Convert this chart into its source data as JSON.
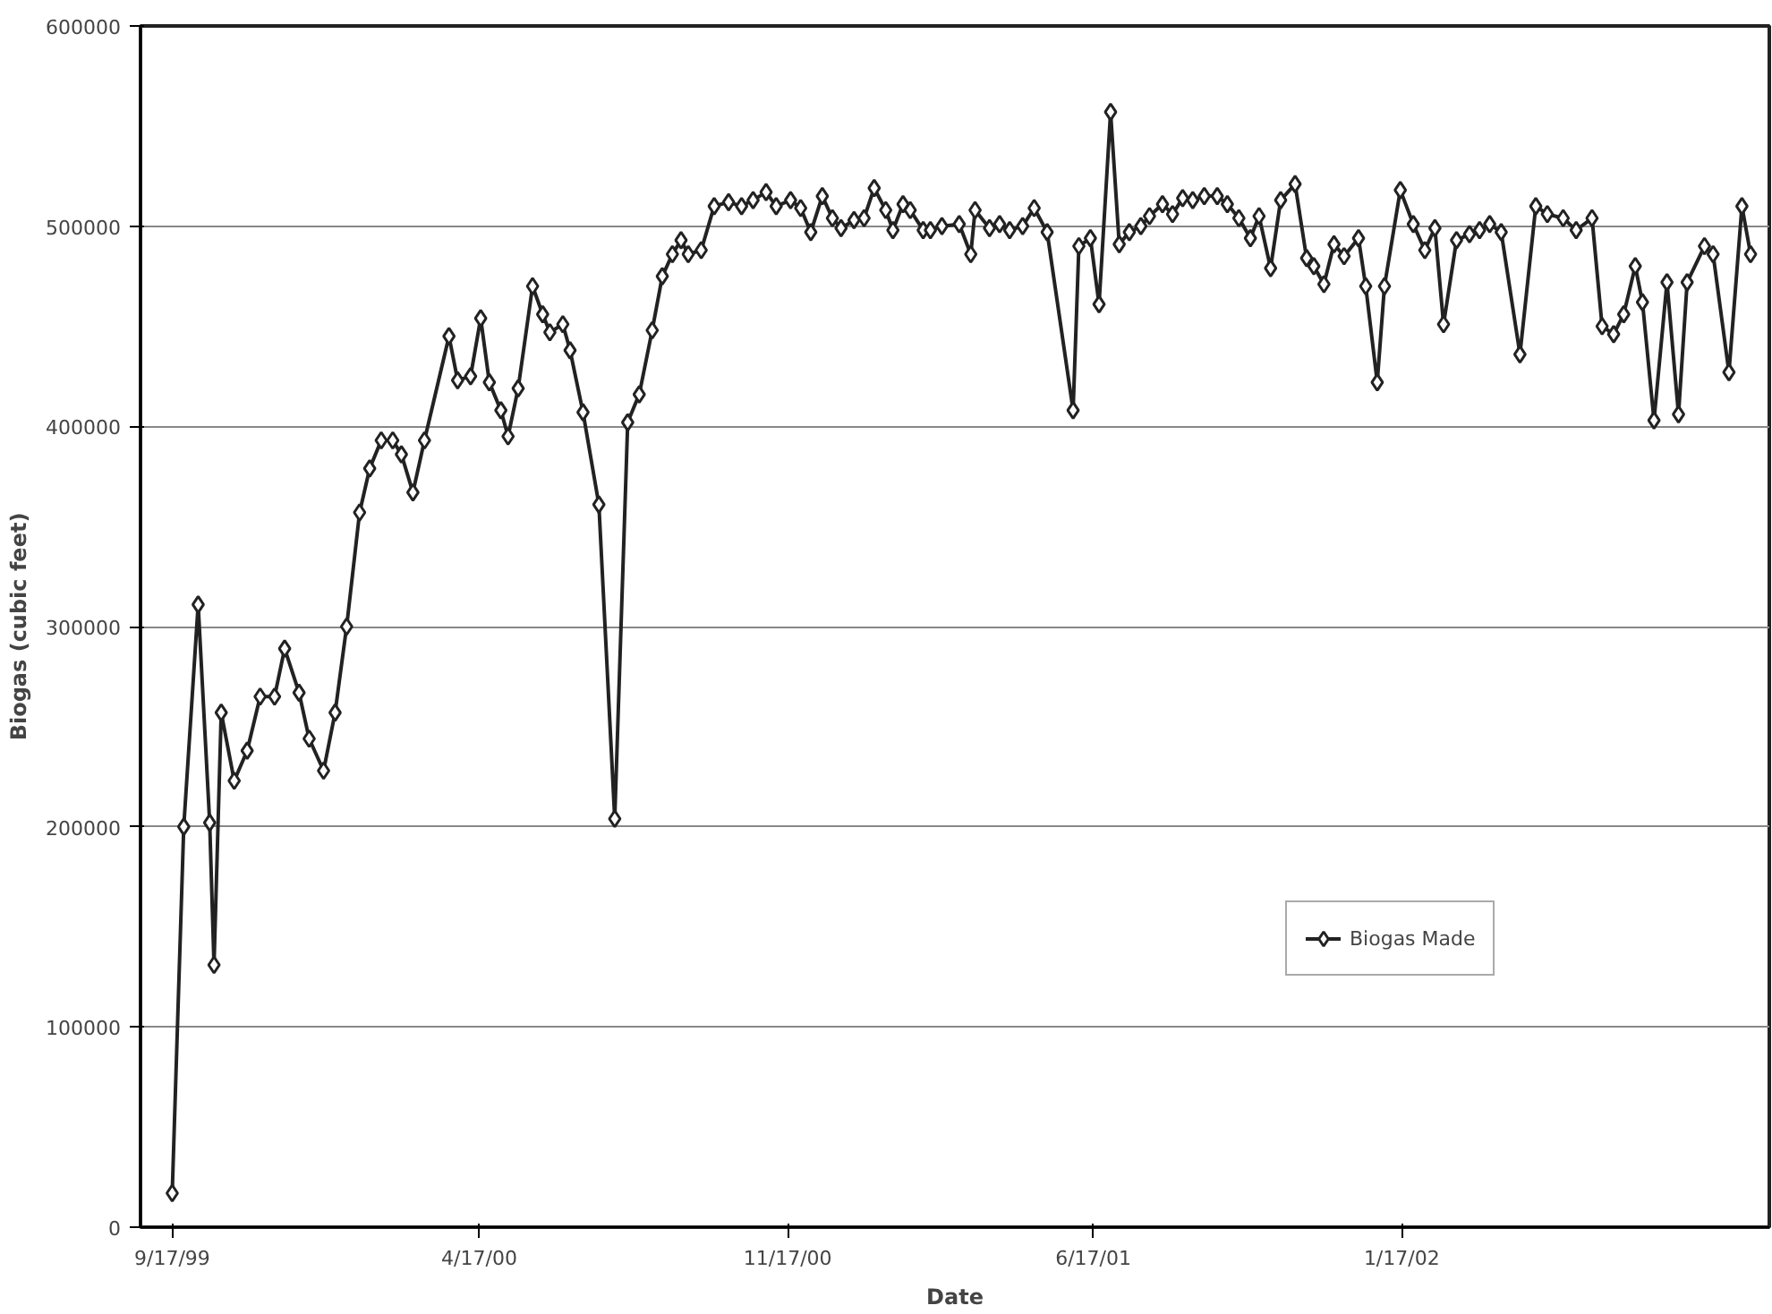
{
  "chart_data": {
    "type": "line",
    "xlabel": "Date",
    "ylabel": "Biogas (cubic feet)",
    "x": [
      "1999-09-17",
      "1999-09-25",
      "1999-10-05",
      "1999-10-13",
      "1999-10-16",
      "1999-10-21",
      "1999-10-30",
      "1999-11-08",
      "1999-11-17",
      "1999-11-27",
      "1999-12-04",
      "1999-12-14",
      "1999-12-21",
      "1999-12-31",
      "2000-01-08",
      "2000-01-16",
      "2000-01-25",
      "2000-02-01",
      "2000-02-09",
      "2000-02-17",
      "2000-02-23",
      "2000-03-02",
      "2000-03-10",
      "2000-03-27",
      "2000-04-02",
      "2000-04-11",
      "2000-04-18",
      "2000-04-24",
      "2000-05-02",
      "2000-05-07",
      "2000-05-14",
      "2000-05-24",
      "2000-05-31",
      "2000-06-05",
      "2000-06-14",
      "2000-06-19",
      "2000-06-28",
      "2000-07-09",
      "2000-07-20",
      "2000-07-29",
      "2000-08-06",
      "2000-08-15",
      "2000-08-22",
      "2000-08-29",
      "2000-09-04",
      "2000-09-09",
      "2000-09-18",
      "2000-09-27",
      "2000-10-07",
      "2000-10-16",
      "2000-10-24",
      "2000-11-02",
      "2000-11-09",
      "2000-11-19",
      "2000-11-26",
      "2000-12-03",
      "2000-12-11",
      "2000-12-18",
      "2000-12-24",
      "2001-01-02",
      "2001-01-09",
      "2001-01-16",
      "2001-01-24",
      "2001-01-29",
      "2001-02-05",
      "2001-02-10",
      "2001-02-19",
      "2001-02-24",
      "2001-03-04",
      "2001-03-16",
      "2001-03-24",
      "2001-03-27",
      "2001-04-06",
      "2001-04-13",
      "2001-04-20",
      "2001-04-29",
      "2001-05-07",
      "2001-05-16",
      "2001-06-03",
      "2001-06-07",
      "2001-06-15",
      "2001-06-21",
      "2001-06-29",
      "2001-07-05",
      "2001-07-12",
      "2001-07-20",
      "2001-07-26",
      "2001-08-04",
      "2001-08-11",
      "2001-08-18",
      "2001-08-25",
      "2001-09-02",
      "2001-09-11",
      "2001-09-18",
      "2001-09-26",
      "2001-10-04",
      "2001-10-10",
      "2001-10-18",
      "2001-10-25",
      "2001-11-04",
      "2001-11-12",
      "2001-11-17",
      "2001-11-24",
      "2001-12-01",
      "2001-12-08",
      "2001-12-18",
      "2001-12-23",
      "2001-12-31",
      "2002-01-05",
      "2002-01-16",
      "2002-01-25",
      "2002-02-02",
      "2002-02-09",
      "2002-02-15",
      "2002-02-24",
      "2002-03-05",
      "2002-03-12",
      "2002-03-19",
      "2002-03-27",
      "2002-04-09",
      "2002-04-20",
      "2002-04-28",
      "2002-05-09",
      "2002-05-18",
      "2002-05-29",
      "2002-06-05",
      "2002-06-13",
      "2002-06-20",
      "2002-06-28",
      "2002-07-03",
      "2002-07-11",
      "2002-07-20",
      "2002-07-28",
      "2002-08-03",
      "2002-08-15",
      "2002-08-21",
      "2002-09-01",
      "2002-09-10",
      "2002-09-16"
    ],
    "series": [
      {
        "name": "Biogas Made",
        "color": "#222222",
        "values": [
          17000,
          200000,
          311000,
          202000,
          131000,
          257000,
          223000,
          238000,
          265000,
          265000,
          289000,
          267000,
          244000,
          228000,
          257000,
          300000,
          357000,
          379000,
          393000,
          393000,
          386000,
          367000,
          393000,
          445000,
          423000,
          425000,
          454000,
          422000,
          408000,
          395000,
          419000,
          470000,
          456000,
          447000,
          451000,
          438000,
          407000,
          361000,
          204000,
          402000,
          416000,
          448000,
          475000,
          486000,
          493000,
          486000,
          488000,
          510000,
          512000,
          510000,
          513000,
          517000,
          510000,
          513000,
          509000,
          497000,
          515000,
          504000,
          499000,
          503000,
          504000,
          519000,
          508000,
          498000,
          511000,
          508000,
          498000,
          498000,
          500000,
          501000,
          486000,
          508000,
          499000,
          501000,
          498000,
          500000,
          509000,
          497000,
          408000,
          490000,
          494000,
          461000,
          557000,
          491000,
          497000,
          500000,
          505000,
          511000,
          506000,
          514000,
          513000,
          515000,
          515000,
          511000,
          504000,
          494000,
          505000,
          479000,
          513000,
          521000,
          484000,
          480000,
          471000,
          491000,
          485000,
          494000,
          470000,
          422000,
          470000,
          518000,
          501000,
          488000,
          499000,
          451000,
          493000,
          496000,
          498000,
          501000,
          497000,
          436000,
          510000,
          506000,
          504000,
          498000,
          504000,
          450000,
          446000,
          456000,
          480000,
          462000,
          403000,
          472000,
          406000,
          472000,
          490000,
          486000,
          427000,
          510000,
          486000
        ]
      }
    ],
    "xlim": [
      "1999-08-26",
      "2002-09-29"
    ],
    "xticks": [
      {
        "value": "1999-09-17",
        "label": "9/17/99"
      },
      {
        "value": "2000-04-17",
        "label": "4/17/00"
      },
      {
        "value": "2000-11-17",
        "label": "11/17/00"
      },
      {
        "value": "2001-06-17",
        "label": "6/17/01"
      },
      {
        "value": "2002-01-17",
        "label": "1/17/02"
      }
    ],
    "ylim": [
      0,
      600000
    ],
    "yticks": [
      0,
      100000,
      200000,
      300000,
      400000,
      500000,
      600000
    ],
    "grid": "y",
    "legend": "right",
    "marker": "diamond",
    "line_style": "solid"
  }
}
